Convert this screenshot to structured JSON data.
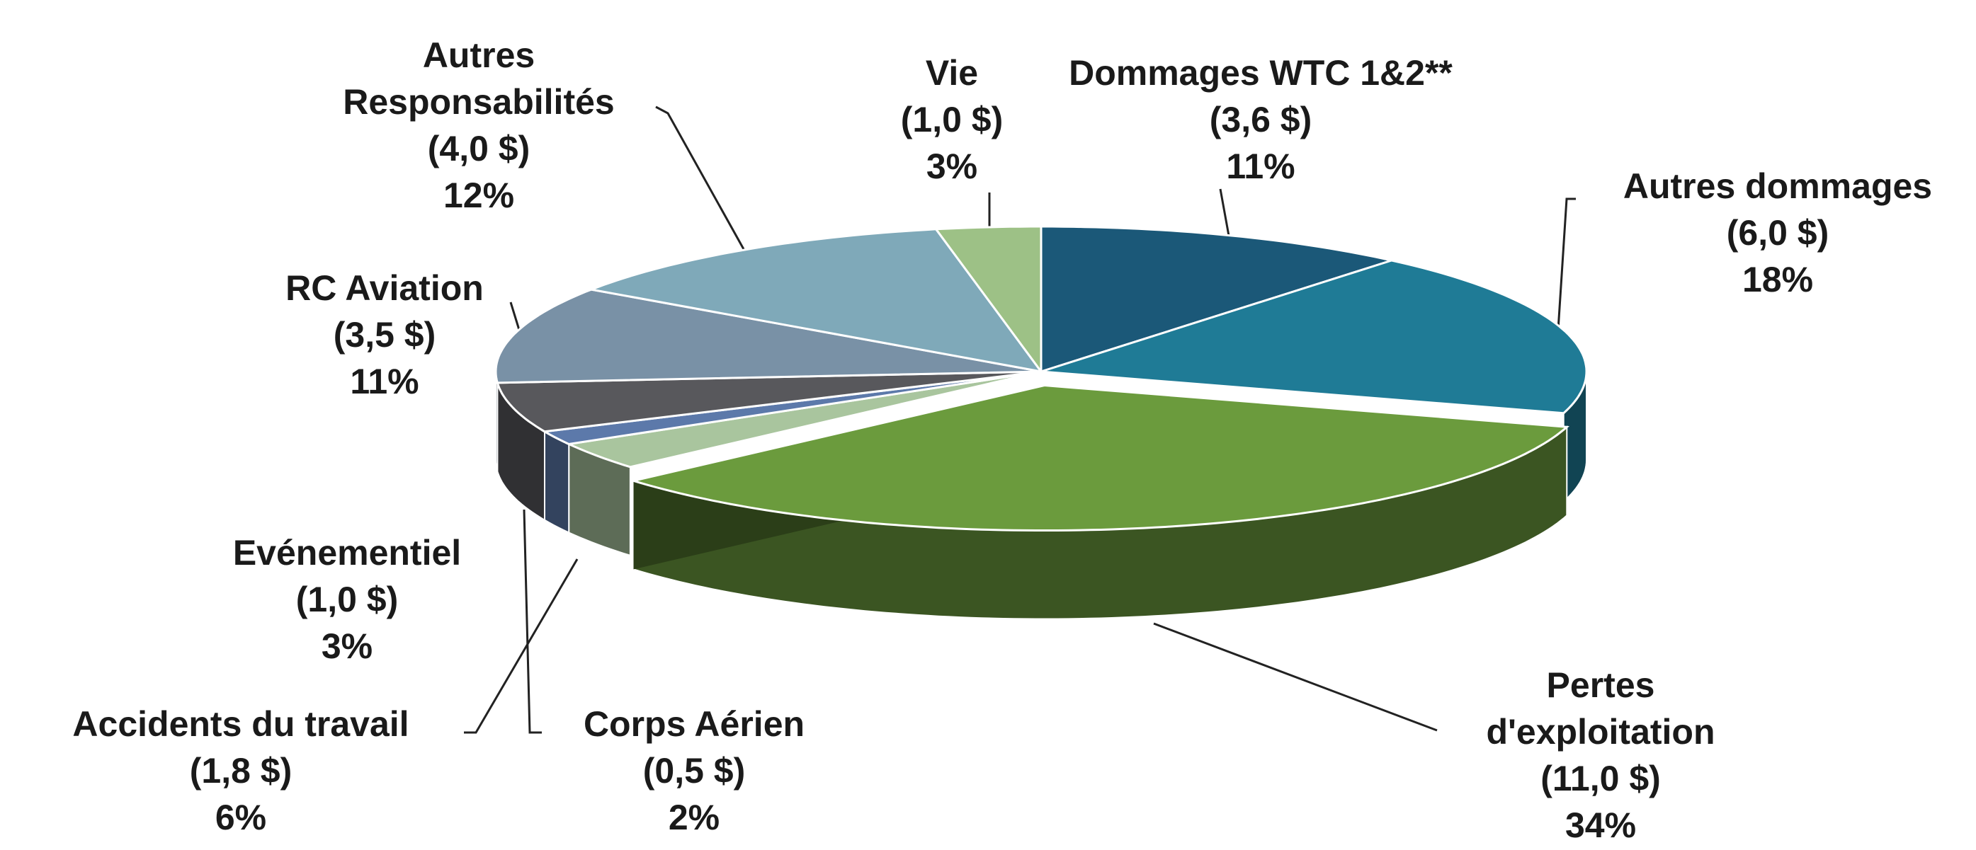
{
  "chart_data": {
    "type": "pie3d",
    "categories": [
      "Dommages WTC 1&2**",
      "Autres dommages",
      "Pertes d'exploitation",
      "Evénementiel",
      "Corps Aérien",
      "Accidents du travail",
      "RC Aviation",
      "Autres Responsabilités",
      "Vie"
    ],
    "values": [
      3.6,
      6.0,
      11.0,
      1.0,
      0.5,
      1.8,
      3.5,
      4.0,
      1.0
    ],
    "value_labels": [
      "(3,6 $)",
      "(6,0 $)",
      "(11,0 $)",
      "(1,0 $)",
      "(0,5 $)",
      "(1,8 $)",
      "(3,5 $)",
      "(4,0 $)",
      "(1,0 $)"
    ],
    "percents": [
      11,
      18,
      34,
      3,
      2,
      6,
      11,
      12,
      3
    ],
    "percent_labels": [
      "11%",
      "18%",
      "34%",
      "3%",
      "2%",
      "6%",
      "11%",
      "12%",
      "3%"
    ],
    "colors": [
      "#1b5878",
      "#1f7b96",
      "#6b9b3d",
      "#a9c59e",
      "#5c79aa",
      "#58585c",
      "#7991a6",
      "#7fa9b9",
      "#9dc186"
    ]
  }
}
